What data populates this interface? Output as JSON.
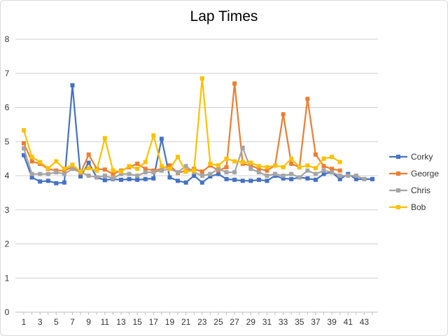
{
  "chart_data": {
    "type": "line",
    "title": "Lap Times",
    "xlabel": "",
    "ylabel": "",
    "ylim": [
      0,
      8
    ],
    "yticks": [
      0,
      1,
      2,
      3,
      4,
      5,
      6,
      7,
      8
    ],
    "xlim": [
      1,
      44
    ],
    "xtick_labels": [
      1,
      3,
      5,
      7,
      9,
      11,
      13,
      15,
      17,
      19,
      21,
      23,
      25,
      27,
      29,
      31,
      33,
      35,
      37,
      39,
      41,
      43
    ],
    "grid": true,
    "legend_position": "right",
    "series": [
      {
        "name": "Corky",
        "color": "#4472C4",
        "values": [
          4.6,
          3.95,
          3.83,
          3.85,
          3.78,
          3.8,
          6.65,
          3.98,
          4.38,
          3.95,
          3.87,
          3.9,
          3.88,
          3.9,
          3.88,
          3.9,
          3.92,
          5.08,
          3.95,
          3.85,
          3.8,
          4.0,
          3.8,
          3.98,
          4.05,
          3.9,
          3.88,
          3.85,
          3.85,
          3.88,
          3.85,
          4.0,
          3.92,
          3.9,
          3.95,
          3.92,
          3.88,
          4.05,
          4.1,
          3.9,
          4.05,
          3.9,
          3.9,
          3.9
        ]
      },
      {
        "name": "George",
        "color": "#ED7D31",
        "values": [
          4.95,
          4.42,
          4.35,
          4.2,
          4.15,
          4.15,
          4.25,
          4.08,
          4.62,
          4.2,
          4.18,
          4.05,
          4.15,
          4.25,
          4.35,
          4.2,
          4.15,
          4.2,
          4.3,
          4.08,
          4.15,
          4.2,
          4.12,
          4.3,
          4.15,
          4.25,
          6.7,
          4.35,
          4.3,
          4.2,
          4.15,
          4.3,
          5.8,
          4.35,
          4.25,
          6.25,
          4.62,
          4.28,
          4.2,
          4.15
        ]
      },
      {
        "name": "Chris",
        "color": "#A5A5A5",
        "values": [
          4.8,
          4.05,
          4.05,
          4.05,
          4.1,
          4.05,
          4.2,
          4.1,
          4.0,
          3.95,
          4.0,
          3.92,
          4.05,
          4.05,
          4.0,
          4.1,
          4.1,
          4.15,
          4.2,
          4.1,
          4.28,
          4.1,
          4.0,
          4.05,
          4.2,
          4.1,
          4.1,
          4.82,
          4.2,
          4.1,
          4.0,
          4.05,
          4.0,
          4.05,
          3.95,
          4.15,
          4.05,
          4.15,
          4.1,
          4.0,
          4.0,
          4.0,
          3.9
        ]
      },
      {
        "name": "Bob",
        "color": "#FFC000",
        "values": [
          5.33,
          4.55,
          4.4,
          4.22,
          4.42,
          4.2,
          4.32,
          4.12,
          4.22,
          4.15,
          5.1,
          4.15,
          4.12,
          4.28,
          4.2,
          4.4,
          5.18,
          4.28,
          4.2,
          4.55,
          4.12,
          4.15,
          6.85,
          4.35,
          4.3,
          4.5,
          4.42,
          4.4,
          4.38,
          4.28,
          4.25,
          4.3,
          4.25,
          4.5,
          4.25,
          4.3,
          4.22,
          4.5,
          4.55,
          4.4
        ]
      }
    ]
  }
}
